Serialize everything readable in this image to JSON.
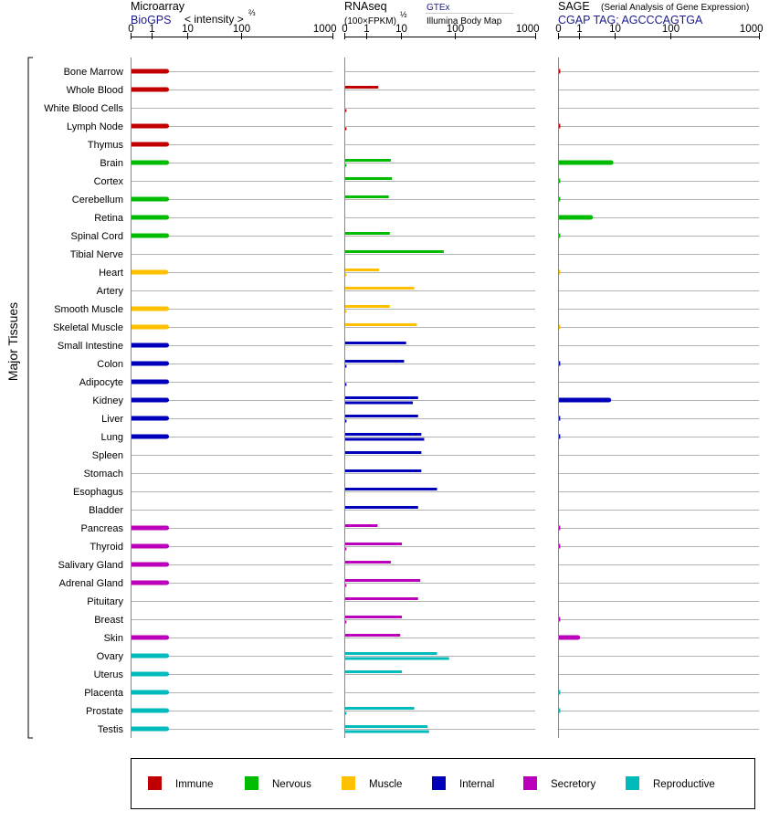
{
  "axis_label": "Major Tissues",
  "panels": [
    {
      "id": "microarray",
      "title": "Microarray",
      "subtitle": "BioGPS",
      "unit_label": "< intensity >",
      "unit_exponent": "⅔",
      "ticks": [
        "0",
        "1",
        "10",
        "100",
        "1000"
      ]
    },
    {
      "id": "rnaseq",
      "title": "RNAseq",
      "unit_label": "(100×FPKM)",
      "unit_exponent": "½",
      "source_top": "GTEx",
      "source_bottom": "Illumina Body Map",
      "ticks": [
        "0",
        "1",
        "10",
        "100",
        "1000"
      ]
    },
    {
      "id": "sage",
      "title": "SAGE",
      "title_note": "(Serial Analysis of Gene Expression)",
      "subtitle": "CGAP  TAG: AGCCCAGTGA",
      "ticks": [
        "0",
        "1",
        "10",
        "100",
        "1000"
      ]
    }
  ],
  "legend": [
    {
      "key": "immune",
      "label": "Immune",
      "color": "#c00000"
    },
    {
      "key": "nervous",
      "label": "Nervous",
      "color": "#00bb00"
    },
    {
      "key": "muscle",
      "label": "Muscle",
      "color": "#ffc000"
    },
    {
      "key": "internal",
      "label": "Internal",
      "color": "#0000bb"
    },
    {
      "key": "secretory",
      "label": "Secretory",
      "color": "#bb00bb"
    },
    {
      "key": "reproductive",
      "label": "Reproductive",
      "color": "#00bbbb"
    }
  ],
  "chart_data": {
    "type": "bar",
    "orientation": "horizontal",
    "x_scale": "log-like (0, 1, 10, 100, 1000)",
    "xlim": [
      0,
      1000
    ],
    "categories": [
      "Bone Marrow",
      "Whole Blood",
      "White Blood Cells",
      "Lymph Node",
      "Thymus",
      "Brain",
      "Cortex",
      "Cerebellum",
      "Retina",
      "Spinal Cord",
      "Tibial Nerve",
      "Heart",
      "Artery",
      "Smooth Muscle",
      "Skeletal Muscle",
      "Small Intestine",
      "Colon",
      "Adipocyte",
      "Kidney",
      "Liver",
      "Lung",
      "Spleen",
      "Stomach",
      "Esophagus",
      "Bladder",
      "Pancreas",
      "Thyroid",
      "Salivary Gland",
      "Adrenal Gland",
      "Pituitary",
      "Breast",
      "Skin",
      "Ovary",
      "Uterus",
      "Placenta",
      "Prostate",
      "Testis"
    ],
    "groups": [
      "immune",
      "immune",
      "immune",
      "immune",
      "immune",
      "nervous",
      "nervous",
      "nervous",
      "nervous",
      "nervous",
      "nervous",
      "muscle",
      "muscle",
      "muscle",
      "muscle",
      "internal",
      "internal",
      "internal",
      "internal",
      "internal",
      "internal",
      "internal",
      "internal",
      "internal",
      "internal",
      "secretory",
      "secretory",
      "secretory",
      "secretory",
      "secretory",
      "secretory",
      "secretory",
      "reproductive",
      "reproductive",
      "reproductive",
      "reproductive",
      "reproductive"
    ],
    "series": [
      {
        "panel": "microarray",
        "values": [
          2.5,
          2.5,
          null,
          2.5,
          2.5,
          2.5,
          null,
          2.5,
          2.5,
          2.5,
          null,
          2.4,
          null,
          2.5,
          2.5,
          2.5,
          2.5,
          2.5,
          2.5,
          2.5,
          2.5,
          null,
          null,
          null,
          null,
          2.5,
          2.5,
          2.5,
          2.5,
          null,
          null,
          2.5,
          2.5,
          2.5,
          2.5,
          2.5,
          2.5
        ]
      },
      {
        "panel": "rnaseq",
        "name": "GTEx",
        "values": [
          null,
          2.1,
          null,
          null,
          null,
          4.8,
          5.2,
          4.2,
          null,
          4.5,
          60,
          2.2,
          17,
          4.5,
          19,
          12,
          11,
          null,
          20,
          20,
          23,
          23,
          23,
          45,
          20,
          2.0,
          10,
          4.8,
          22,
          20,
          10,
          9,
          45,
          10,
          null,
          17,
          30
        ]
      },
      {
        "panel": "rnaseq",
        "name": "Illumina Body Map",
        "values": [
          null,
          null,
          0.05,
          0.05,
          null,
          0.05,
          null,
          null,
          null,
          null,
          null,
          0.05,
          null,
          0.05,
          null,
          null,
          0.05,
          0.05,
          16,
          0.05,
          26,
          null,
          null,
          null,
          null,
          null,
          0.05,
          null,
          0.05,
          null,
          0.05,
          null,
          75,
          null,
          null,
          0.05,
          32
        ]
      },
      {
        "panel": "sage",
        "values": [
          0.05,
          null,
          null,
          0.05,
          null,
          7.5,
          0.05,
          0.05,
          2.0,
          0.05,
          null,
          0.02,
          null,
          null,
          0.02,
          null,
          0.05,
          null,
          6.5,
          0.05,
          0.05,
          null,
          null,
          null,
          null,
          0.05,
          0.05,
          null,
          null,
          null,
          0.05,
          0.9,
          null,
          null,
          0.05,
          0.05,
          null
        ]
      }
    ]
  }
}
